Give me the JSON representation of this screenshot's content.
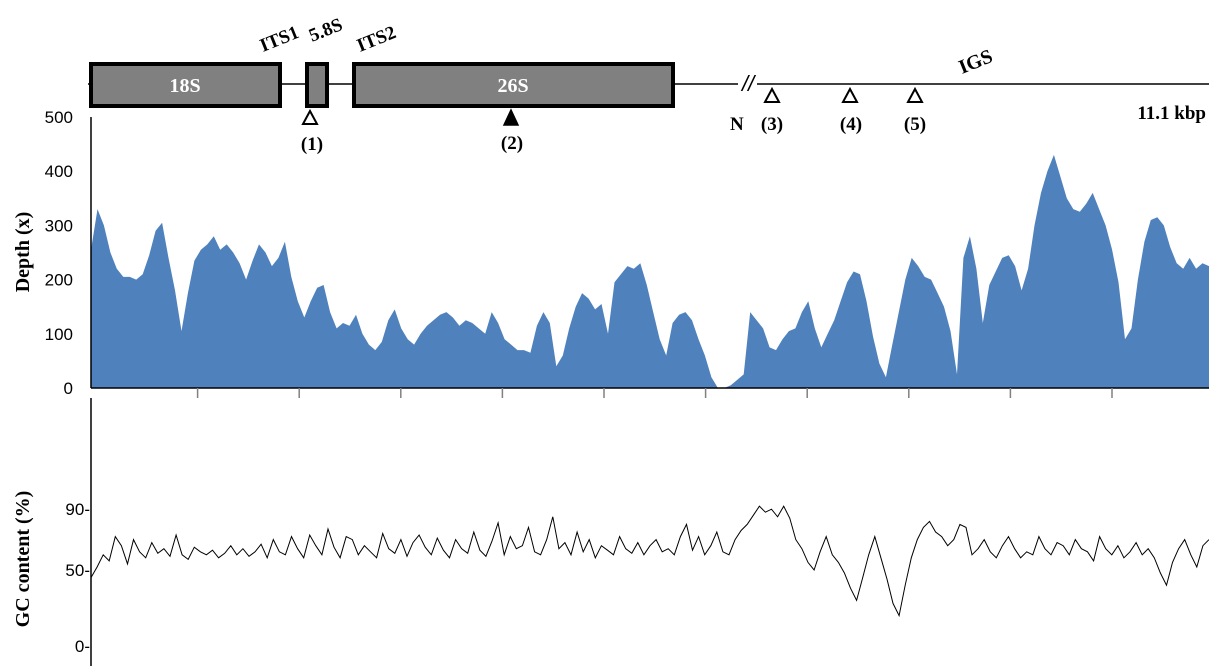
{
  "colors": {
    "depth_fill": "#4f81bd",
    "axis": "#000000",
    "gene_box_fill": "#808080",
    "gene_box_stroke": "#000000",
    "gene_box_text": "#ffffff",
    "gc_line": "#000000"
  },
  "gene_map": {
    "boxes": [
      {
        "name": "18S",
        "label": "18S"
      },
      {
        "name": "5.8S",
        "label": ""
      },
      {
        "name": "26S",
        "label": "26S"
      }
    ],
    "spacer_labels": {
      "its1": "ITS1",
      "s58": "5.8S",
      "its2": "ITS2",
      "igs": "IGS"
    },
    "break_mark": "//",
    "n_label": "N",
    "length_label": "11.1 kbp",
    "markers": [
      {
        "id": "1",
        "label": "(1)",
        "filled": false
      },
      {
        "id": "2",
        "label": "(2)",
        "filled": true
      },
      {
        "id": "3",
        "label": "(3)",
        "filled": false
      },
      {
        "id": "4",
        "label": "(4)",
        "filled": false
      },
      {
        "id": "5",
        "label": "(5)",
        "filled": false
      }
    ]
  },
  "chart_data": [
    {
      "type": "area",
      "ylabel": "Depth (x)",
      "ylim": [
        0,
        500
      ],
      "yticks": [
        "0",
        "100",
        "200",
        "300",
        "400",
        "500"
      ],
      "x_tick_count": 10,
      "series": [
        {
          "values": [
            255,
            330,
            300,
            250,
            220,
            205,
            205,
            200,
            210,
            245,
            290,
            305,
            240,
            180,
            105,
            175,
            235,
            255,
            265,
            280,
            255,
            265,
            250,
            230,
            200,
            235,
            265,
            250,
            225,
            240,
            270,
            205,
            160,
            130,
            160,
            185,
            190,
            140,
            110,
            120,
            115,
            135,
            100,
            80,
            70,
            85,
            125,
            145,
            110,
            90,
            80,
            100,
            115,
            125,
            135,
            140,
            130,
            115,
            125,
            120,
            110,
            100,
            140,
            120,
            90,
            80,
            70,
            70,
            65,
            115,
            140,
            120,
            40,
            60,
            110,
            150,
            175,
            165,
            145,
            155,
            100,
            195,
            210,
            225,
            220,
            230,
            190,
            140,
            90,
            60,
            120,
            135,
            140,
            125,
            90,
            60,
            20,
            0,
            0,
            5,
            15,
            25,
            140,
            125,
            110,
            75,
            70,
            90,
            105,
            110,
            140,
            160,
            110,
            75,
            100,
            125,
            160,
            195,
            215,
            210,
            160,
            95,
            45,
            20,
            80,
            140,
            200,
            240,
            225,
            205,
            200,
            175,
            150,
            105,
            25,
            240,
            280,
            220,
            120,
            190,
            215,
            240,
            245,
            225,
            180,
            220,
            300,
            360,
            400,
            430,
            390,
            350,
            330,
            325,
            340,
            360,
            330,
            300,
            255,
            195,
            90,
            110,
            200,
            270,
            310,
            315,
            300,
            260,
            230,
            220,
            240,
            220,
            230,
            225
          ]
        }
      ]
    },
    {
      "type": "line",
      "ylabel": "GC content (%)",
      "ylim": [
        0,
        100
      ],
      "yticks": [
        "0-",
        "50-",
        "90-"
      ],
      "series": [
        {
          "values": [
            45,
            52,
            60,
            56,
            72,
            66,
            54,
            70,
            62,
            58,
            68,
            61,
            64,
            59,
            73,
            60,
            57,
            65,
            62,
            60,
            63,
            58,
            61,
            66,
            60,
            64,
            59,
            62,
            67,
            58,
            70,
            62,
            60,
            72,
            64,
            58,
            73,
            66,
            60,
            77,
            65,
            58,
            72,
            70,
            60,
            66,
            62,
            58,
            74,
            64,
            61,
            70,
            59,
            68,
            73,
            65,
            60,
            71,
            63,
            58,
            70,
            64,
            61,
            75,
            63,
            59,
            69,
            81,
            60,
            72,
            64,
            66,
            78,
            62,
            60,
            70,
            85,
            64,
            68,
            60,
            75,
            62,
            70,
            58,
            66,
            63,
            60,
            72,
            64,
            61,
            68,
            60,
            66,
            70,
            62,
            64,
            60,
            72,
            80,
            63,
            72,
            60,
            66,
            75,
            62,
            60,
            70,
            76,
            80,
            86,
            92,
            88,
            90,
            85,
            92,
            84,
            70,
            64,
            55,
            50,
            62,
            72,
            60,
            55,
            48,
            38,
            30,
            45,
            60,
            72,
            58,
            44,
            28,
            20,
            40,
            58,
            70,
            78,
            82,
            75,
            72,
            66,
            70,
            80,
            78,
            60,
            64,
            70,
            62,
            58,
            66,
            72,
            64,
            58,
            62,
            60,
            72,
            64,
            60,
            68,
            66,
            60,
            70,
            64,
            62,
            56,
            72,
            64,
            60,
            66,
            58,
            62,
            68,
            60,
            64,
            58,
            48,
            40,
            55,
            64,
            70,
            60,
            52,
            66,
            70
          ]
        }
      ]
    }
  ]
}
